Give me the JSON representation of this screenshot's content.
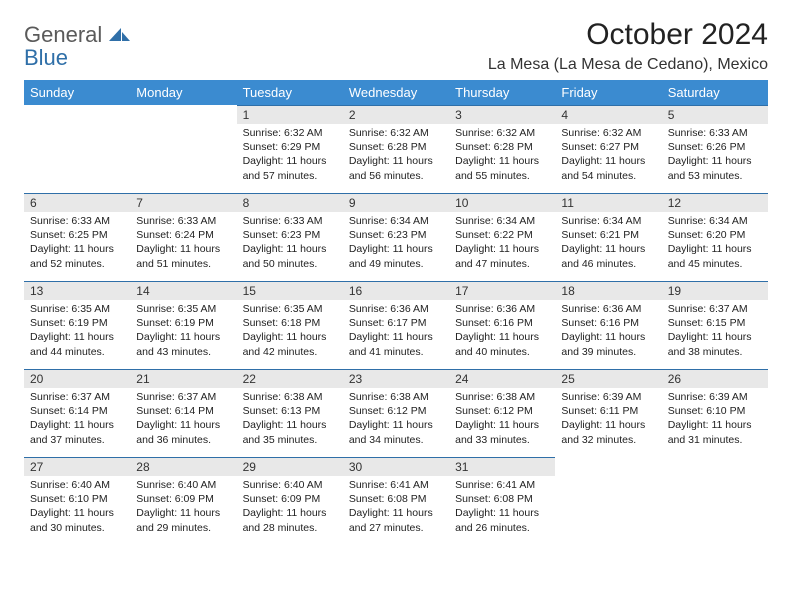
{
  "brand": {
    "word1": "General",
    "word2": "Blue"
  },
  "colors": {
    "header_bg": "#3b8bd0",
    "daynum_bg": "#e8e8e8",
    "daynum_border": "#2f6fa8",
    "blue_text": "#2f6fa8"
  },
  "title": "October 2024",
  "location": "La Mesa (La Mesa de Cedano), Mexico",
  "weekdays": [
    "Sunday",
    "Monday",
    "Tuesday",
    "Wednesday",
    "Thursday",
    "Friday",
    "Saturday"
  ],
  "weeks": [
    [
      {
        "n": "",
        "sr": "",
        "ss": "",
        "dl": ""
      },
      {
        "n": "",
        "sr": "",
        "ss": "",
        "dl": ""
      },
      {
        "n": "1",
        "sr": "6:32 AM",
        "ss": "6:29 PM",
        "dl": "11 hours and 57 minutes."
      },
      {
        "n": "2",
        "sr": "6:32 AM",
        "ss": "6:28 PM",
        "dl": "11 hours and 56 minutes."
      },
      {
        "n": "3",
        "sr": "6:32 AM",
        "ss": "6:28 PM",
        "dl": "11 hours and 55 minutes."
      },
      {
        "n": "4",
        "sr": "6:32 AM",
        "ss": "6:27 PM",
        "dl": "11 hours and 54 minutes."
      },
      {
        "n": "5",
        "sr": "6:33 AM",
        "ss": "6:26 PM",
        "dl": "11 hours and 53 minutes."
      }
    ],
    [
      {
        "n": "6",
        "sr": "6:33 AM",
        "ss": "6:25 PM",
        "dl": "11 hours and 52 minutes."
      },
      {
        "n": "7",
        "sr": "6:33 AM",
        "ss": "6:24 PM",
        "dl": "11 hours and 51 minutes."
      },
      {
        "n": "8",
        "sr": "6:33 AM",
        "ss": "6:23 PM",
        "dl": "11 hours and 50 minutes."
      },
      {
        "n": "9",
        "sr": "6:34 AM",
        "ss": "6:23 PM",
        "dl": "11 hours and 49 minutes."
      },
      {
        "n": "10",
        "sr": "6:34 AM",
        "ss": "6:22 PM",
        "dl": "11 hours and 47 minutes."
      },
      {
        "n": "11",
        "sr": "6:34 AM",
        "ss": "6:21 PM",
        "dl": "11 hours and 46 minutes."
      },
      {
        "n": "12",
        "sr": "6:34 AM",
        "ss": "6:20 PM",
        "dl": "11 hours and 45 minutes."
      }
    ],
    [
      {
        "n": "13",
        "sr": "6:35 AM",
        "ss": "6:19 PM",
        "dl": "11 hours and 44 minutes."
      },
      {
        "n": "14",
        "sr": "6:35 AM",
        "ss": "6:19 PM",
        "dl": "11 hours and 43 minutes."
      },
      {
        "n": "15",
        "sr": "6:35 AM",
        "ss": "6:18 PM",
        "dl": "11 hours and 42 minutes."
      },
      {
        "n": "16",
        "sr": "6:36 AM",
        "ss": "6:17 PM",
        "dl": "11 hours and 41 minutes."
      },
      {
        "n": "17",
        "sr": "6:36 AM",
        "ss": "6:16 PM",
        "dl": "11 hours and 40 minutes."
      },
      {
        "n": "18",
        "sr": "6:36 AM",
        "ss": "6:16 PM",
        "dl": "11 hours and 39 minutes."
      },
      {
        "n": "19",
        "sr": "6:37 AM",
        "ss": "6:15 PM",
        "dl": "11 hours and 38 minutes."
      }
    ],
    [
      {
        "n": "20",
        "sr": "6:37 AM",
        "ss": "6:14 PM",
        "dl": "11 hours and 37 minutes."
      },
      {
        "n": "21",
        "sr": "6:37 AM",
        "ss": "6:14 PM",
        "dl": "11 hours and 36 minutes."
      },
      {
        "n": "22",
        "sr": "6:38 AM",
        "ss": "6:13 PM",
        "dl": "11 hours and 35 minutes."
      },
      {
        "n": "23",
        "sr": "6:38 AM",
        "ss": "6:12 PM",
        "dl": "11 hours and 34 minutes."
      },
      {
        "n": "24",
        "sr": "6:38 AM",
        "ss": "6:12 PM",
        "dl": "11 hours and 33 minutes."
      },
      {
        "n": "25",
        "sr": "6:39 AM",
        "ss": "6:11 PM",
        "dl": "11 hours and 32 minutes."
      },
      {
        "n": "26",
        "sr": "6:39 AM",
        "ss": "6:10 PM",
        "dl": "11 hours and 31 minutes."
      }
    ],
    [
      {
        "n": "27",
        "sr": "6:40 AM",
        "ss": "6:10 PM",
        "dl": "11 hours and 30 minutes."
      },
      {
        "n": "28",
        "sr": "6:40 AM",
        "ss": "6:09 PM",
        "dl": "11 hours and 29 minutes."
      },
      {
        "n": "29",
        "sr": "6:40 AM",
        "ss": "6:09 PM",
        "dl": "11 hours and 28 minutes."
      },
      {
        "n": "30",
        "sr": "6:41 AM",
        "ss": "6:08 PM",
        "dl": "11 hours and 27 minutes."
      },
      {
        "n": "31",
        "sr": "6:41 AM",
        "ss": "6:08 PM",
        "dl": "11 hours and 26 minutes."
      },
      {
        "n": "",
        "sr": "",
        "ss": "",
        "dl": ""
      },
      {
        "n": "",
        "sr": "",
        "ss": "",
        "dl": ""
      }
    ]
  ],
  "labels": {
    "sunrise": "Sunrise:",
    "sunset": "Sunset:",
    "daylight": "Daylight:"
  }
}
